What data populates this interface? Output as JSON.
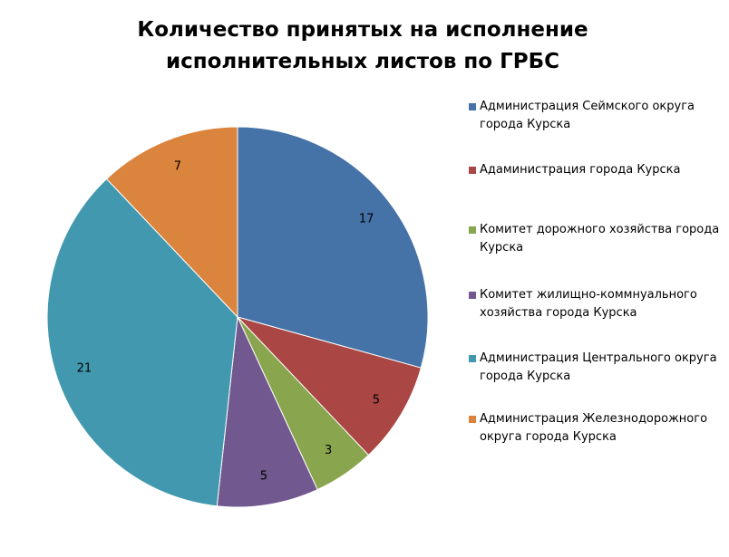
{
  "chart_data": {
    "type": "pie",
    "title": "Количество принятых на исполнение исполнительных листов  по ГРБС",
    "categories": [
      "Администрация Сеймского округа города Курска",
      "Адаминистрация города Курска",
      "Комитет дорожного хозяйства города Курска",
      "Комитет жилищно-коммнуального хозяйства города Курска",
      "Администрация Центрального округа города Курска",
      "Администрация Железнодорожного округа города Курска"
    ],
    "values": [
      17,
      5,
      3,
      5,
      21,
      7
    ],
    "colors": [
      "#4572a7",
      "#aa4643",
      "#89a54e",
      "#71588f",
      "#4198af",
      "#db843d"
    ],
    "legend": "right"
  }
}
